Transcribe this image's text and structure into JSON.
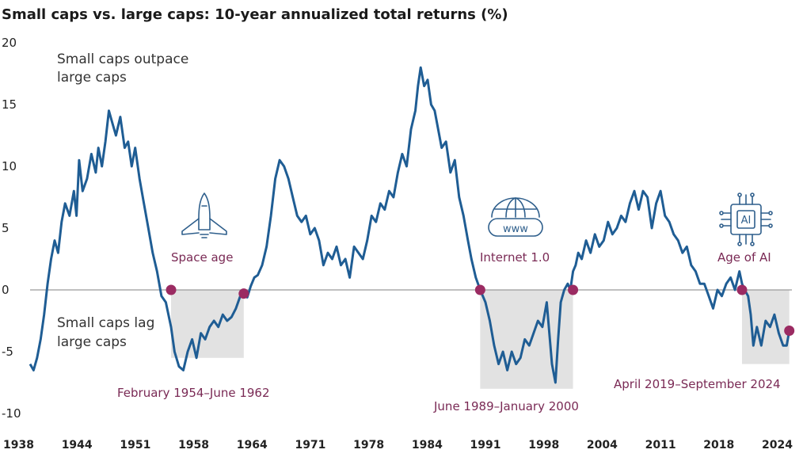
{
  "chart_data": {
    "type": "line",
    "title": "Small caps vs. large caps: 10-year annualized total returns (%)",
    "xlabel": "",
    "ylabel": "",
    "ylim": [
      -10,
      20
    ],
    "xlim": [
      1938,
      2025
    ],
    "yticks": [
      20,
      15,
      10,
      5,
      0,
      -5,
      -10
    ],
    "xtick_labels": [
      "1938",
      "1944",
      "1951",
      "1958",
      "1964",
      "1971",
      "1978",
      "1984",
      "1991",
      "1998",
      "2004",
      "2011",
      "2018",
      "2024"
    ],
    "series": [
      {
        "name": "Small caps vs. large caps 10-year annualized total returns",
        "color": "#1f5d94",
        "x": [
          1938.0,
          1938.4,
          1938.8,
          1939.2,
          1939.6,
          1940.0,
          1940.4,
          1940.8,
          1941.2,
          1941.6,
          1942.0,
          1942.5,
          1943.0,
          1943.3,
          1943.6,
          1944.0,
          1944.5,
          1945.0,
          1945.5,
          1945.8,
          1946.2,
          1946.6,
          1947.0,
          1947.4,
          1947.8,
          1948.3,
          1948.8,
          1949.2,
          1949.6,
          1950.0,
          1950.5,
          1951.0,
          1951.5,
          1952.0,
          1952.5,
          1953.0,
          1953.5,
          1954.1,
          1954.5,
          1955.0,
          1955.5,
          1956.0,
          1956.5,
          1957.0,
          1957.5,
          1958.0,
          1958.5,
          1959.0,
          1959.5,
          1960.0,
          1960.5,
          1961.0,
          1961.5,
          1962.0,
          1962.4,
          1962.8,
          1963.2,
          1963.6,
          1964.0,
          1964.5,
          1965.0,
          1965.5,
          1966.0,
          1966.5,
          1967.0,
          1967.5,
          1968.0,
          1968.5,
          1969.0,
          1969.5,
          1970.0,
          1970.5,
          1971.0,
          1971.5,
          1972.0,
          1972.5,
          1973.0,
          1973.5,
          1974.0,
          1974.5,
          1975.0,
          1975.5,
          1976.0,
          1976.5,
          1977.0,
          1977.5,
          1978.0,
          1978.5,
          1979.0,
          1979.5,
          1980.0,
          1980.5,
          1981.0,
          1981.5,
          1982.0,
          1982.3,
          1982.6,
          1983.0,
          1983.4,
          1983.8,
          1984.2,
          1984.6,
          1985.0,
          1985.5,
          1986.0,
          1986.5,
          1987.0,
          1987.5,
          1988.0,
          1988.4,
          1988.9,
          1989.4,
          1990.0,
          1990.5,
          1991.0,
          1991.5,
          1992.0,
          1992.5,
          1993.0,
          1993.5,
          1994.0,
          1994.5,
          1995.0,
          1995.5,
          1996.0,
          1996.5,
          1997.0,
          1997.3,
          1997.6,
          1998.0,
          1998.3,
          1998.6,
          1999.0,
          1999.4,
          1999.7,
          2000.0,
          2000.3,
          2000.6,
          2001.0,
          2001.5,
          2002.0,
          2002.5,
          2003.0,
          2003.5,
          2004.0,
          2004.5,
          2005.0,
          2005.5,
          2006.0,
          2006.5,
          2007.0,
          2007.5,
          2008.0,
          2008.5,
          2009.0,
          2009.5,
          2010.0,
          2010.5,
          2011.0,
          2011.5,
          2012.0,
          2012.5,
          2013.0,
          2013.5,
          2014.0,
          2014.5,
          2015.0,
          2015.5,
          2016.0,
          2016.5,
          2017.0,
          2017.5,
          2018.0,
          2018.5,
          2019.0,
          2019.3,
          2019.6,
          2020.0,
          2020.3,
          2020.6,
          2021.0,
          2021.5,
          2022.0,
          2022.5,
          2023.0,
          2023.5,
          2024.0,
          2024.4,
          2024.7
        ],
        "values": [
          -6.0,
          -6.5,
          -5.5,
          -4.0,
          -2.0,
          0.5,
          2.5,
          4.0,
          3.0,
          5.5,
          7.0,
          6.0,
          8.0,
          6.0,
          10.5,
          8.0,
          9.0,
          11.0,
          9.5,
          11.5,
          10.0,
          12.0,
          14.5,
          13.5,
          12.5,
          14.0,
          11.5,
          12.0,
          10.0,
          11.5,
          9.0,
          7.0,
          5.0,
          3.0,
          1.5,
          -0.5,
          -1.0,
          -3.0,
          -5.0,
          -6.2,
          -6.5,
          -5.0,
          -4.0,
          -5.5,
          -3.5,
          -4.0,
          -3.0,
          -2.5,
          -3.0,
          -2.0,
          -2.5,
          -2.2,
          -1.5,
          -0.5,
          0.0,
          -0.6,
          0.3,
          1.0,
          1.2,
          2.0,
          3.5,
          6.0,
          9.0,
          10.5,
          10.0,
          9.0,
          7.5,
          6.0,
          5.5,
          6.0,
          4.5,
          5.0,
          4.0,
          2.0,
          3.0,
          2.5,
          3.5,
          2.0,
          2.5,
          1.0,
          3.5,
          3.0,
          2.5,
          4.0,
          6.0,
          5.5,
          7.0,
          6.5,
          8.0,
          7.5,
          9.5,
          11.0,
          10.0,
          13.0,
          14.5,
          16.5,
          18.0,
          16.5,
          17.0,
          15.0,
          14.5,
          13.0,
          11.5,
          12.0,
          9.5,
          10.5,
          7.5,
          6.0,
          4.0,
          2.5,
          1.0,
          0.0,
          -1.0,
          -2.5,
          -4.5,
          -6.0,
          -5.0,
          -6.5,
          -5.0,
          -6.0,
          -5.5,
          -4.0,
          -4.5,
          -3.5,
          -2.5,
          -3.0,
          -1.0,
          -3.5,
          -6.0,
          -7.5,
          -4.0,
          -1.0,
          0.0,
          0.5,
          0.0,
          1.5,
          2.0,
          3.0,
          2.5,
          4.0,
          3.0,
          4.5,
          3.5,
          4.0,
          5.5,
          4.5,
          5.0,
          6.0,
          5.5,
          7.0,
          8.0,
          6.5,
          8.0,
          7.5,
          5.0,
          7.0,
          8.0,
          6.0,
          5.5,
          4.5,
          4.0,
          3.0,
          3.5,
          2.0,
          1.5,
          0.5,
          0.5,
          -0.5,
          -1.5,
          0.0,
          -0.5,
          0.5,
          1.0,
          0.0,
          1.5,
          0.5,
          0.0,
          -0.5,
          -2.0,
          -4.5,
          -3.0,
          -4.5,
          -2.5,
          -3.0,
          -2.0,
          -3.5,
          -4.5,
          -4.5,
          -3.3
        ]
      }
    ],
    "zero_line": 0,
    "shaded_periods": [
      {
        "start": 1954.1,
        "end": 1962.4,
        "ymin": -5.5,
        "label": "February 1954–June 1962",
        "era": "Space age",
        "icon": "space-shuttle-icon"
      },
      {
        "start": 1989.4,
        "end": 2000.0,
        "ymin": -8.0,
        "label": "June 1989–January 2000",
        "era": "Internet 1.0",
        "icon": "globe-www-icon"
      },
      {
        "start": 2019.3,
        "end": 2024.7,
        "ymin": -6.0,
        "label": "April 2019–September 2024",
        "era": "Age of AI",
        "icon": "ai-chip-icon"
      }
    ],
    "markers": [
      {
        "x": 1954.1,
        "y": 0.0
      },
      {
        "x": 1962.4,
        "y": -0.3
      },
      {
        "x": 1989.4,
        "y": 0.0
      },
      {
        "x": 2000.0,
        "y": 0.0
      },
      {
        "x": 2019.3,
        "y": 0.0
      },
      {
        "x": 2024.7,
        "y": -3.3
      }
    ],
    "annotations": {
      "top_note": [
        "Small caps outpace",
        "large caps"
      ],
      "bottom_note": [
        "Small caps lag",
        "large caps"
      ]
    },
    "www_text": "www",
    "ai_text": "AI",
    "colors": {
      "line": "#1f5d94",
      "marker": "#9b2b62",
      "shade": "#e2e2e2",
      "zero_line": "#9a9a9a",
      "icon": "#2f5f8c"
    }
  }
}
